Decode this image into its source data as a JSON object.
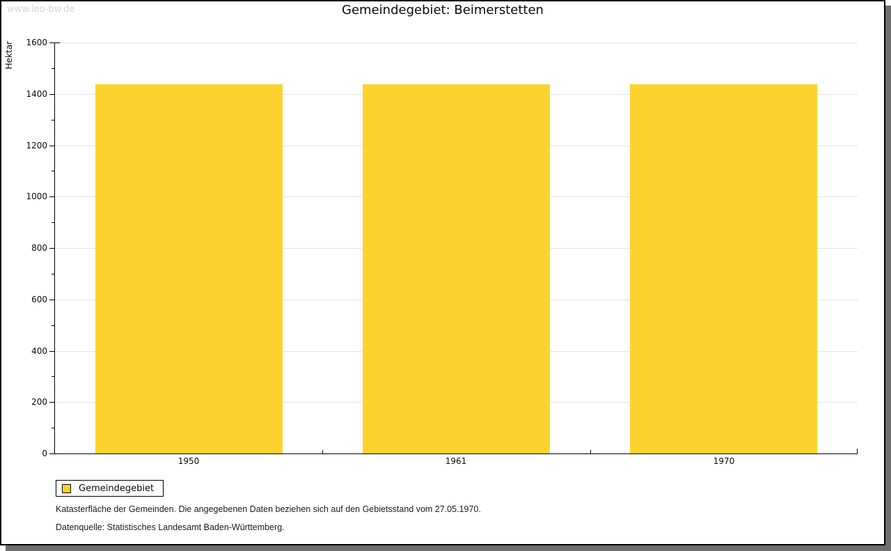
{
  "watermark": "www.leo-bw.de",
  "chart_data": {
    "type": "bar",
    "title": "Gemeindegebiet: Beimerstetten",
    "categories": [
      "1950",
      "1961",
      "1970"
    ],
    "series": [
      {
        "name": "Gemeindegebiet",
        "values": [
          1436,
          1436,
          1436
        ]
      }
    ],
    "xlabel": "",
    "ylabel": "Hektar",
    "ylim": [
      0,
      1600
    ],
    "ytick_major_step": 200,
    "ytick_minor_step": 100,
    "grid": true,
    "legend_position": "bottom-left",
    "bar_color": "#FCD32E"
  },
  "footnotes": [
    "Katasterfläche der Gemeinden. Die angegebenen Daten beziehen sich auf den Gebietsstand vom 27.05.1970.",
    "Datenquelle: Statistisches Landesamt Baden-Württemberg."
  ],
  "colors": {
    "bar": "#FCD32E",
    "grid": "#E3E3E3",
    "axis": "#000000",
    "frame_border": "#000000",
    "shadow": "#6F6F6F",
    "watermark": "#D4D4D4"
  }
}
